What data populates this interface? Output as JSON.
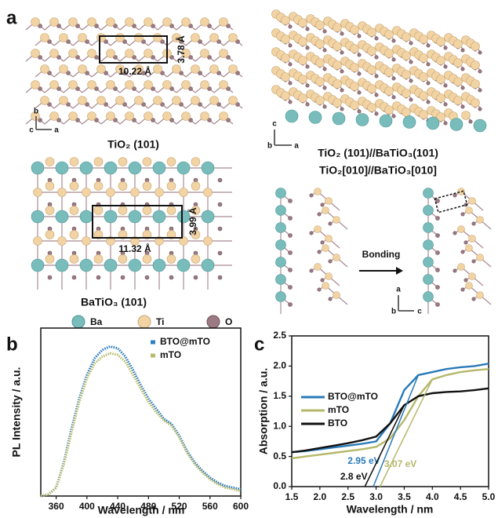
{
  "panel_a": {
    "label": "a",
    "tio2": {
      "width": "10.22 Å",
      "height": "3.78 Å",
      "caption": "TiO₂ (101)",
      "axes": [
        "b",
        "c",
        "a"
      ]
    },
    "batio3": {
      "width": "11.32 Å",
      "height": "3.99 Å",
      "caption": "BaTiO₃ (101)"
    },
    "legend": [
      "Ba",
      "Ti",
      "O"
    ],
    "interface": {
      "axes": [
        "c",
        "b",
        "a"
      ],
      "caption": [
        "TiO₂ (101)//BaTiO₃(101)",
        "TiO₂[010]//BaTiO₃[010]"
      ],
      "arrow": "Bonding",
      "axes2": [
        "a",
        "b",
        "c"
      ]
    }
  },
  "chart_data": [
    {
      "label": "b",
      "type": "line",
      "xlabel": "Wavelength / nm",
      "ylabel": "PL Intensity / a.u.",
      "x": [
        340,
        350,
        360,
        370,
        380,
        390,
        400,
        410,
        420,
        430,
        440,
        450,
        460,
        470,
        480,
        490,
        500,
        510,
        520,
        530,
        540,
        550,
        560,
        570,
        580,
        590,
        600
      ],
      "series": [
        {
          "name": "BTO@mTO",
          "color": "#2f7fc0",
          "values": [
            0,
            0.01,
            0.05,
            0.2,
            0.4,
            0.58,
            0.72,
            0.82,
            0.87,
            0.89,
            0.88,
            0.83,
            0.75,
            0.66,
            0.58,
            0.52,
            0.46,
            0.43,
            0.36,
            0.27,
            0.2,
            0.15,
            0.11,
            0.08,
            0.06,
            0.05,
            0.04
          ]
        },
        {
          "name": "mTO",
          "color": "#b8bb6e",
          "values": [
            0,
            0.01,
            0.05,
            0.19,
            0.38,
            0.56,
            0.7,
            0.79,
            0.83,
            0.85,
            0.84,
            0.8,
            0.72,
            0.64,
            0.56,
            0.5,
            0.45,
            0.42,
            0.35,
            0.26,
            0.19,
            0.14,
            0.1,
            0.07,
            0.05,
            0.04,
            0.03
          ]
        }
      ],
      "xlim": [
        340,
        600
      ],
      "xticks": [
        360,
        400,
        440,
        480,
        520,
        560,
        600
      ],
      "ylim": [
        0,
        1
      ],
      "legend": "upper right"
    },
    {
      "label": "c",
      "type": "line",
      "xlabel": "Wavelength / nm",
      "ylabel": "Absorption / a.u.",
      "x": [
        1.5,
        1.75,
        2.0,
        2.25,
        2.5,
        2.75,
        3.0,
        3.25,
        3.5,
        3.75,
        4.0,
        4.25,
        4.5,
        4.75,
        5.0
      ],
      "series": [
        {
          "name": "BTO@mTO",
          "color": "#2a7ab8",
          "values": [
            0.57,
            0.59,
            0.62,
            0.65,
            0.68,
            0.71,
            0.75,
            1.05,
            1.6,
            1.85,
            1.9,
            1.95,
            1.98,
            2.0,
            2.04
          ]
        },
        {
          "name": "mTO",
          "color": "#b5b86a",
          "values": [
            0.47,
            0.5,
            0.53,
            0.56,
            0.59,
            0.62,
            0.66,
            0.8,
            1.1,
            1.5,
            1.78,
            1.85,
            1.9,
            1.93,
            1.95
          ]
        },
        {
          "name": "BTO",
          "color": "#111111",
          "values": [
            0.57,
            0.6,
            0.64,
            0.68,
            0.72,
            0.77,
            0.83,
            1.05,
            1.35,
            1.5,
            1.55,
            1.57,
            1.58,
            1.6,
            1.63
          ]
        }
      ],
      "annotations": [
        {
          "value": 2.95,
          "label": "2.95 eV"
        },
        {
          "value": 3.07,
          "label": "3.07 eV"
        },
        {
          "value": 2.8,
          "label": "2.8 eV"
        }
      ],
      "xlim": [
        1.5,
        5.0
      ],
      "xticks": [
        1.5,
        {
          "value": 2,
          "label": "2.0"
        },
        2.5,
        {
          "value": 3,
          "label": "3.0"
        },
        3.5,
        {
          "value": 4,
          "label": "4.0"
        },
        4.5,
        {
          "value": 5,
          "label": "5.0"
        }
      ],
      "ylim": [
        0,
        2.5
      ],
      "yticks": [
        {
          "value": 0,
          "label": "0.0"
        },
        0.5,
        {
          "value": 1,
          "label": "1.0"
        },
        1.5,
        {
          "value": 2,
          "label": "2.0"
        },
        2.5
      ],
      "legend": "center left"
    }
  ]
}
